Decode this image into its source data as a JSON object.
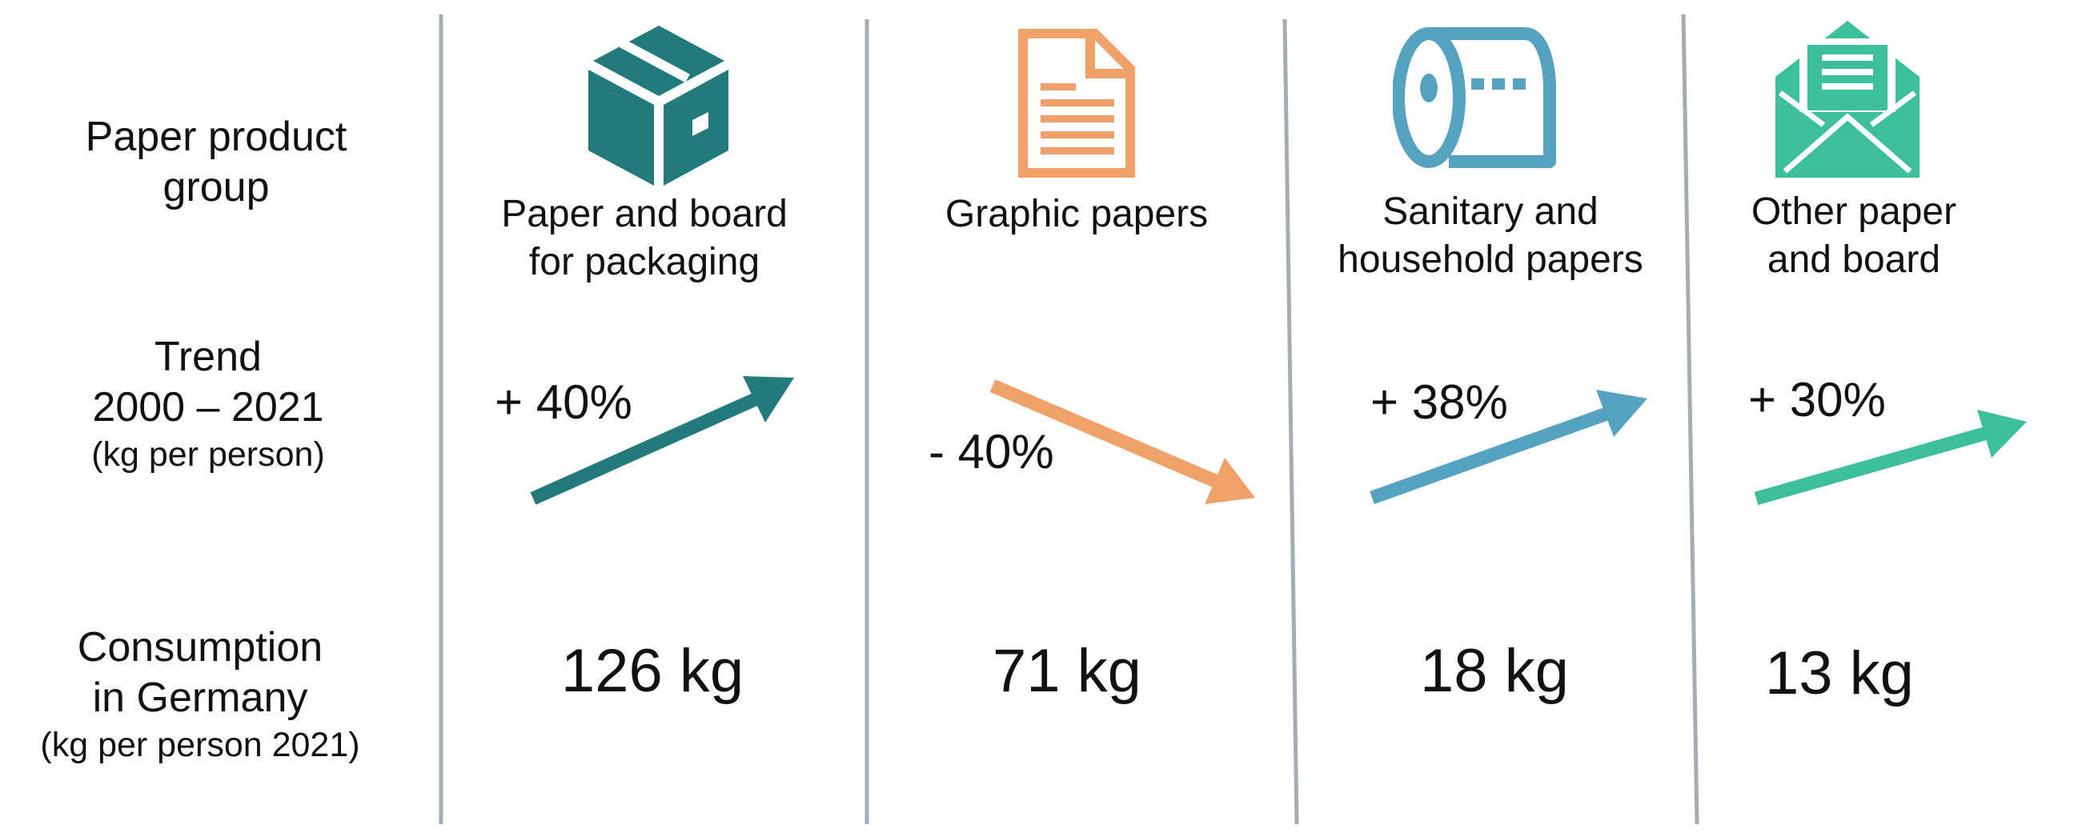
{
  "row_labels": {
    "group": [
      "Paper product",
      "group"
    ],
    "trend": [
      "Trend",
      "2000 – 2021",
      "(kg per person)"
    ],
    "consumption": [
      "Consumption",
      "in Germany",
      "(kg per person 2021)"
    ]
  },
  "columns": [
    {
      "icon": "package-box-icon",
      "color": "#237a7c",
      "title": [
        "Paper and board",
        "for packaging"
      ],
      "trend_label": "+ 40%",
      "trend_direction": "up",
      "consumption": "126 kg"
    },
    {
      "icon": "document-icon",
      "color": "#f0a069",
      "title": [
        "Graphic papers"
      ],
      "trend_label": "- 40%",
      "trend_direction": "down",
      "consumption": "71 kg"
    },
    {
      "icon": "toilet-paper-roll-icon",
      "color": "#55a3c0",
      "title": [
        "Sanitary and",
        "household papers"
      ],
      "trend_label": "+ 38%",
      "trend_direction": "up",
      "consumption": "18 kg"
    },
    {
      "icon": "open-envelope-letter-icon",
      "color": "#3dc09a",
      "title": [
        "Other paper",
        "and board"
      ],
      "trend_label": "+ 30%",
      "trend_direction": "up",
      "consumption": "13 kg"
    }
  ]
}
